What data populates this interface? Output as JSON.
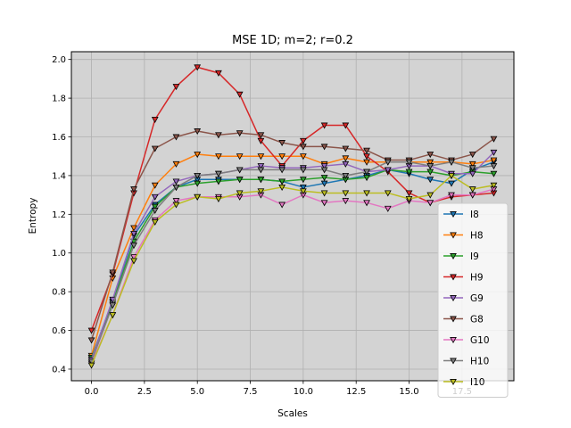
{
  "chart_data": {
    "type": "line",
    "title": "MSE 1D; m=2; r=0.2",
    "xlabel": "Scales",
    "ylabel": "Entropy",
    "xlim": [
      -0.95,
      19.95
    ],
    "ylim": [
      0.34,
      2.04
    ],
    "xticks": [
      0.0,
      2.5,
      5.0,
      7.5,
      10.0,
      12.5,
      15.0,
      17.5
    ],
    "xtick_labels": [
      "0.0",
      "2.5",
      "5.0",
      "7.5",
      "10.0",
      "12.5",
      "15.0",
      "17.5"
    ],
    "yticks": [
      0.4,
      0.6,
      0.8,
      1.0,
      1.2,
      1.4,
      1.6,
      1.8,
      2.0
    ],
    "ytick_labels": [
      "0.4",
      "0.6",
      "0.8",
      "1.0",
      "1.2",
      "1.4",
      "1.6",
      "1.8",
      "2.0"
    ],
    "grid": true,
    "background": "#d3d3d3",
    "legend_position": "lower-right",
    "marker": "triangle-down",
    "x": [
      0,
      1,
      2,
      3,
      4,
      5,
      6,
      7,
      8,
      9,
      10,
      11,
      12,
      13,
      14,
      15,
      16,
      17,
      18,
      19
    ],
    "series": [
      {
        "name": "I8",
        "color": "#1f77b4",
        "values": [
          0.46,
          0.75,
          1.09,
          1.25,
          1.34,
          1.38,
          1.38,
          1.38,
          1.38,
          1.37,
          1.34,
          1.36,
          1.38,
          1.4,
          1.43,
          1.41,
          1.38,
          1.36,
          1.43,
          1.47
        ]
      },
      {
        "name": "H8",
        "color": "#ff7f0e",
        "values": [
          0.47,
          0.87,
          1.13,
          1.35,
          1.46,
          1.51,
          1.5,
          1.5,
          1.5,
          1.5,
          1.5,
          1.46,
          1.49,
          1.47,
          1.47,
          1.47,
          1.47,
          1.47,
          1.46,
          1.48
        ]
      },
      {
        "name": "I9",
        "color": "#2ca02c",
        "values": [
          0.46,
          0.74,
          1.06,
          1.24,
          1.34,
          1.36,
          1.37,
          1.38,
          1.38,
          1.37,
          1.38,
          1.39,
          1.38,
          1.39,
          1.43,
          1.42,
          1.42,
          1.4,
          1.42,
          1.41
        ]
      },
      {
        "name": "H9",
        "color": "#d62728",
        "values": [
          0.6,
          0.89,
          1.31,
          1.69,
          1.86,
          1.96,
          1.93,
          1.82,
          1.58,
          1.45,
          1.58,
          1.66,
          1.66,
          1.5,
          1.42,
          1.31,
          1.26,
          1.29,
          1.3,
          1.31
        ]
      },
      {
        "name": "G9",
        "color": "#9467bd",
        "values": [
          0.45,
          0.76,
          1.1,
          1.29,
          1.37,
          1.4,
          1.41,
          1.43,
          1.45,
          1.44,
          1.44,
          1.45,
          1.46,
          1.42,
          1.43,
          1.45,
          1.45,
          1.41,
          1.41,
          1.52
        ]
      },
      {
        "name": "G8",
        "color": "#8c564b",
        "values": [
          0.55,
          0.9,
          1.33,
          1.54,
          1.6,
          1.63,
          1.61,
          1.62,
          1.61,
          1.57,
          1.55,
          1.55,
          1.54,
          1.53,
          1.48,
          1.48,
          1.51,
          1.48,
          1.51,
          1.59
        ]
      },
      {
        "name": "G10",
        "color": "#e377c2",
        "values": [
          0.43,
          0.68,
          0.98,
          1.17,
          1.27,
          1.29,
          1.29,
          1.29,
          1.3,
          1.25,
          1.3,
          1.26,
          1.27,
          1.26,
          1.23,
          1.27,
          1.26,
          1.3,
          1.3,
          1.33
        ]
      },
      {
        "name": "H10",
        "color": "#7f7f7f",
        "values": [
          0.44,
          0.73,
          1.04,
          1.22,
          1.34,
          1.4,
          1.41,
          1.43,
          1.43,
          1.43,
          1.43,
          1.43,
          1.4,
          1.42,
          1.47,
          1.47,
          1.45,
          1.47,
          1.44,
          1.45
        ]
      },
      {
        "name": "I10",
        "color": "#bcbd22",
        "values": [
          0.42,
          0.68,
          0.96,
          1.16,
          1.25,
          1.29,
          1.28,
          1.31,
          1.32,
          1.34,
          1.32,
          1.31,
          1.31,
          1.31,
          1.31,
          1.28,
          1.3,
          1.4,
          1.33,
          1.35
        ]
      }
    ]
  }
}
